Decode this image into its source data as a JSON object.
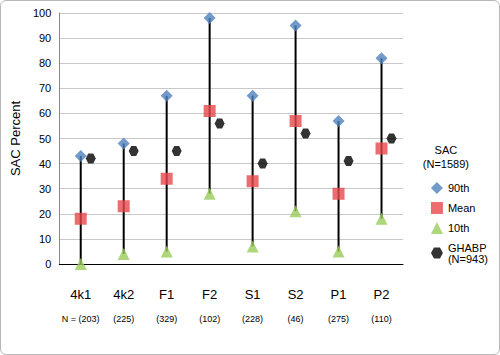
{
  "chart_data": {
    "type": "scatter",
    "ylabel": "SAC Percent",
    "categories": [
      "4k1",
      "4k2",
      "F1",
      "F2",
      "S1",
      "S2",
      "P1",
      "P2"
    ],
    "sample_size_labels": [
      "N = (203)",
      "(225)",
      "(329)",
      "(102)",
      "(228)",
      "(46)",
      "(275)",
      "(110)"
    ],
    "legend_title": "SAC (N=1589)",
    "series": [
      {
        "name": "90th",
        "color": "#4F81BD",
        "marker": "diamond",
        "values": [
          43,
          48,
          67,
          98,
          67,
          95,
          57,
          82
        ]
      },
      {
        "name": "Mean",
        "color": "#E8474B",
        "marker": "square",
        "values": [
          18,
          23,
          34,
          61,
          33,
          57,
          28,
          46
        ]
      },
      {
        "name": "10th",
        "color": "#9ACD5B",
        "marker": "triangle",
        "values": [
          0,
          4,
          5,
          28,
          7,
          21,
          5,
          18
        ]
      },
      {
        "name": "GHABP (N=943)",
        "color": "#000000",
        "marker": "hexagon",
        "values": [
          42,
          45,
          45,
          56,
          40,
          52,
          41,
          50
        ]
      }
    ],
    "range_lines": {
      "from": "10th",
      "to": "90th"
    },
    "ylim": [
      0,
      100
    ],
    "yticks": [
      0,
      10,
      20,
      30,
      40,
      50,
      60,
      70,
      80,
      90,
      100
    ],
    "grid": true,
    "legend": "right"
  }
}
